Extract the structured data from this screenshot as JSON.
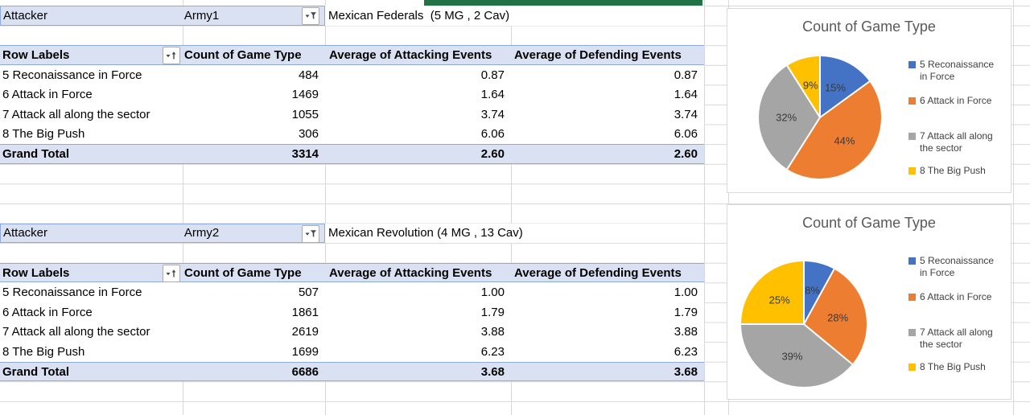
{
  "app": {
    "type": "spreadsheet-pivot-view"
  },
  "colors": {
    "slice_blue": "#4472C4",
    "slice_orange": "#ED7D31",
    "slice_gray": "#A5A5A5",
    "slice_yellow": "#FFC000",
    "pivot_fill": "#D9E1F2",
    "pivot_border": "#8EA9DB",
    "gridline": "#D8D8D8",
    "chart_border": "#D9D9D9",
    "chart_title_gray": "#595959",
    "green_strip": "#217346"
  },
  "pivot_tables": [
    {
      "filter": {
        "label": "Attacker",
        "value": "Army1",
        "note": "Mexican Federals  (5 MG , 2 Cav)"
      },
      "headers": [
        "Row Labels",
        "Count of Game Type",
        "Average of Attacking Events",
        "Average of Defending Events"
      ],
      "rows": [
        [
          "5 Reconaissance in Force",
          "484",
          "0.87",
          "0.87"
        ],
        [
          "6 Attack in Force",
          "1469",
          "1.64",
          "1.64"
        ],
        [
          "7 Attack all along the sector",
          "1055",
          "3.74",
          "3.74"
        ],
        [
          "8 The Big Push",
          "306",
          "6.06",
          "6.06"
        ]
      ],
      "grand_total": [
        "Grand Total",
        "3314",
        "2.60",
        "2.60"
      ]
    },
    {
      "filter": {
        "label": "Attacker",
        "value": "Army2",
        "note": "Mexican Revolution (4 MG , 13 Cav)"
      },
      "headers": [
        "Row Labels",
        "Count of Game Type",
        "Average of Attacking Events",
        "Average of Defending Events"
      ],
      "rows": [
        [
          "5 Reconaissance in Force",
          "507",
          "1.00",
          "1.00"
        ],
        [
          "6 Attack in Force",
          "1861",
          "1.79",
          "1.79"
        ],
        [
          "7 Attack all along the sector",
          "2619",
          "3.88",
          "3.88"
        ],
        [
          "8 The Big Push",
          "1699",
          "6.23",
          "6.23"
        ]
      ],
      "grand_total": [
        "Grand Total",
        "6686",
        "3.68",
        "3.68"
      ]
    }
  ],
  "chart_data": [
    {
      "type": "pie",
      "title": "Count of Game Type",
      "legend": [
        "5 Reconaissance in Force",
        "6 Attack in Force",
        "7 Attack all along the sector",
        "8 The Big Push"
      ],
      "values": [
        15,
        44,
        32,
        9
      ],
      "percent_labels": [
        "15%",
        "44%",
        "32%",
        "9%"
      ],
      "counts": [
        484,
        1469,
        1055,
        306
      ],
      "colors": [
        "#4472C4",
        "#ED7D31",
        "#A5A5A5",
        "#FFC000"
      ],
      "legend_position": "right",
      "start_angle_deg": 0,
      "direction": "clockwise"
    },
    {
      "type": "pie",
      "title": "Count of Game Type",
      "legend": [
        "5 Reconaissance in Force",
        "6 Attack in Force",
        "7 Attack all along the sector",
        "8 The Big Push"
      ],
      "values": [
        8,
        28,
        39,
        25
      ],
      "percent_labels": [
        "8%",
        "28%",
        "39%",
        "25%"
      ],
      "counts": [
        507,
        1861,
        2619,
        1699
      ],
      "colors": [
        "#4472C4",
        "#ED7D31",
        "#A5A5A5",
        "#FFC000"
      ],
      "legend_position": "right",
      "start_angle_deg": 0,
      "direction": "clockwise"
    }
  ]
}
